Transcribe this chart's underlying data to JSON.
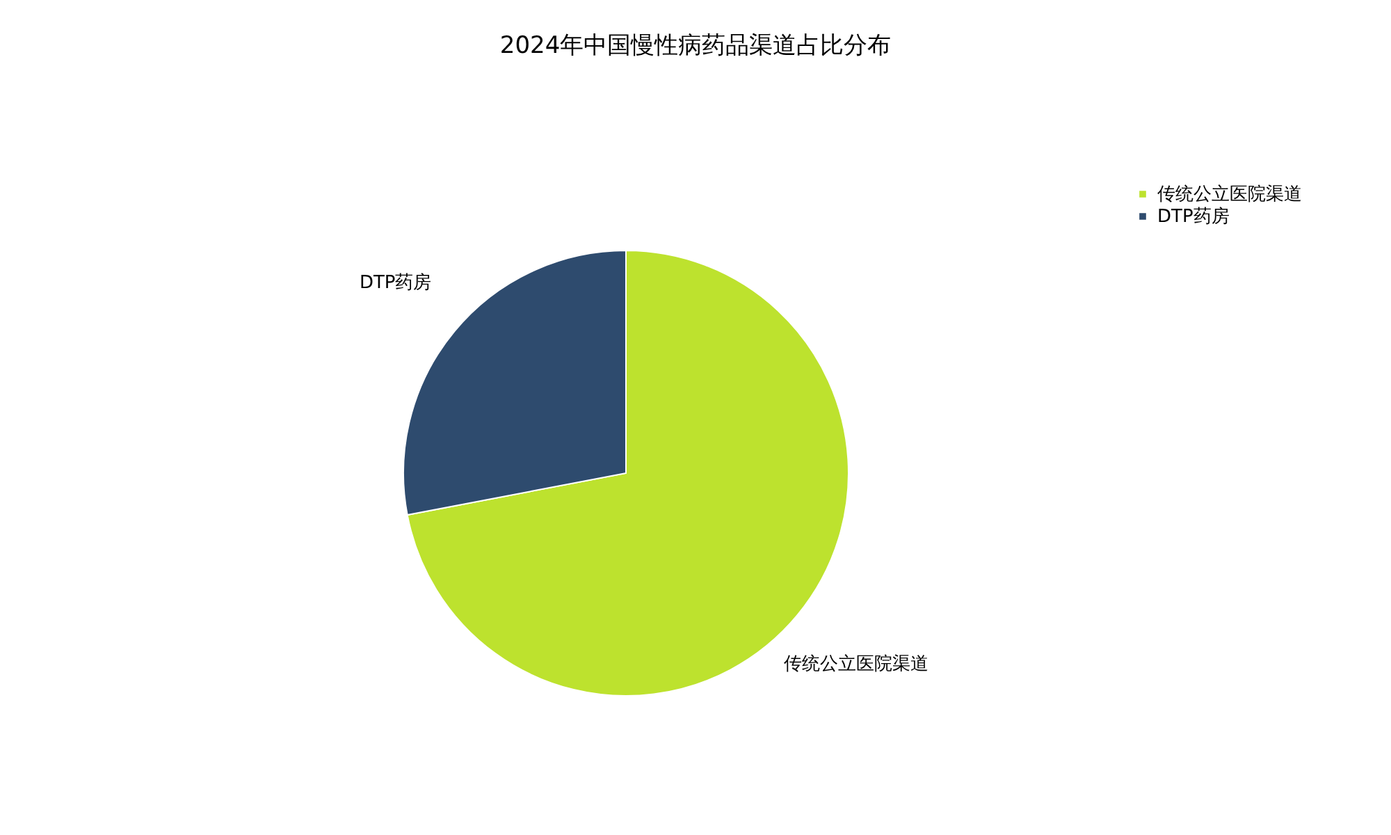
{
  "chart_data": {
    "type": "pie",
    "title": "2024年中国慢性病药品渠道占比分布",
    "categories": [
      "传统公立医院渠道",
      "DTP药房"
    ],
    "values": [
      72,
      28
    ],
    "colors": [
      "#bde22e",
      "#2e4b6e"
    ],
    "legend": "top right"
  }
}
